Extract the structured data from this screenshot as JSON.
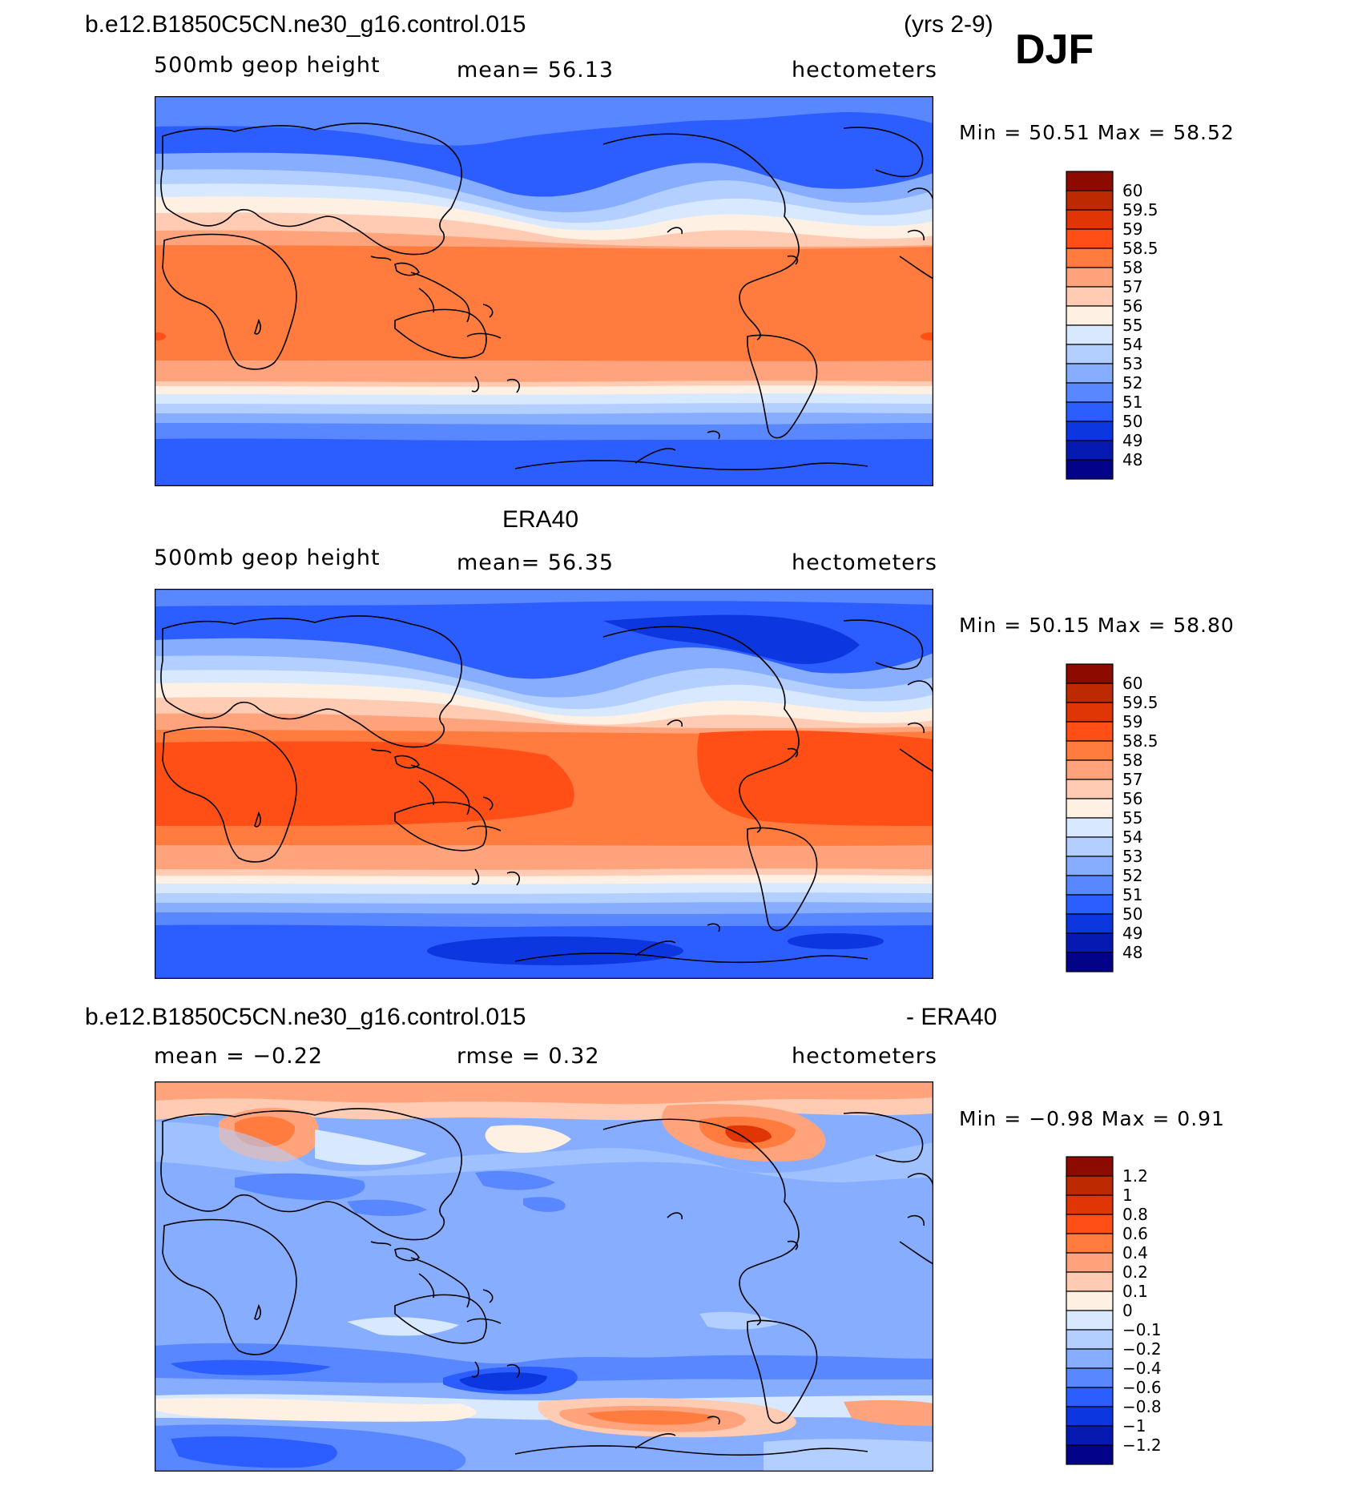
{
  "header": {
    "case_name": "b.e12.B1850C5CN.ne30_g16.control.015",
    "years": "(yrs 2-9)",
    "season": "DJF"
  },
  "chart_data": [
    {
      "type": "heatmap",
      "variable": "500mb geop height",
      "mean_text": "mean=   56.13",
      "units": "hectometers",
      "minmax_text": "Min =   50.51  Max =   58.52",
      "colorbar": {
        "labels": [
          "60",
          "59.5",
          "59",
          "58.5",
          "58",
          "57",
          "56",
          "55",
          "54",
          "53",
          "52",
          "51",
          "50",
          "49",
          "48"
        ],
        "colors": [
          "#8c0a00",
          "#bd2a02",
          "#e03504",
          "#ff4f16",
          "#ff7c3e",
          "#ffa37c",
          "#ffcbb2",
          "#fff0e4",
          "#d7e8ff",
          "#b3cfff",
          "#86adff",
          "#5887ff",
          "#2c5dff",
          "#0c36e0",
          "#061ab2",
          "#03038a"
        ]
      }
    },
    {
      "type": "heatmap",
      "title": "ERA40",
      "variable": "500mb geop height",
      "mean_text": "mean=   56.35",
      "units": "hectometers",
      "minmax_text": "Min =   50.15  Max =   58.80",
      "colorbar": {
        "labels": [
          "60",
          "59.5",
          "59",
          "58.5",
          "58",
          "57",
          "56",
          "55",
          "54",
          "53",
          "52",
          "51",
          "50",
          "49",
          "48"
        ],
        "colors": [
          "#8c0a00",
          "#bd2a02",
          "#e03504",
          "#ff4f16",
          "#ff7c3e",
          "#ffa37c",
          "#ffcbb2",
          "#fff0e4",
          "#d7e8ff",
          "#b3cfff",
          "#86adff",
          "#5887ff",
          "#2c5dff",
          "#0c36e0",
          "#061ab2",
          "#03038a"
        ]
      }
    },
    {
      "type": "heatmap",
      "title_left": "b.e12.B1850C5CN.ne30_g16.control.015",
      "title_right": "- ERA40",
      "mean_text": "mean =   −0.22",
      "rmse_text": "rmse =    0.32",
      "units": "hectometers",
      "minmax_text": "Min =   −0.98  Max =    0.91",
      "colorbar": {
        "labels": [
          "1.2",
          "1",
          "0.8",
          "0.6",
          "0.4",
          "0.2",
          "0.1",
          "0",
          "−0.1",
          "−0.2",
          "−0.4",
          "−0.6",
          "−0.8",
          "−1",
          "−1.2"
        ],
        "colors": [
          "#8c0a00",
          "#bd2a02",
          "#e03504",
          "#ff4f16",
          "#ff7c3e",
          "#ffa37c",
          "#ffcbb2",
          "#fff0e4",
          "#d7e8ff",
          "#b3cfff",
          "#86adff",
          "#5887ff",
          "#2c5dff",
          "#0c36e0",
          "#061ab2",
          "#03038a"
        ]
      }
    }
  ]
}
